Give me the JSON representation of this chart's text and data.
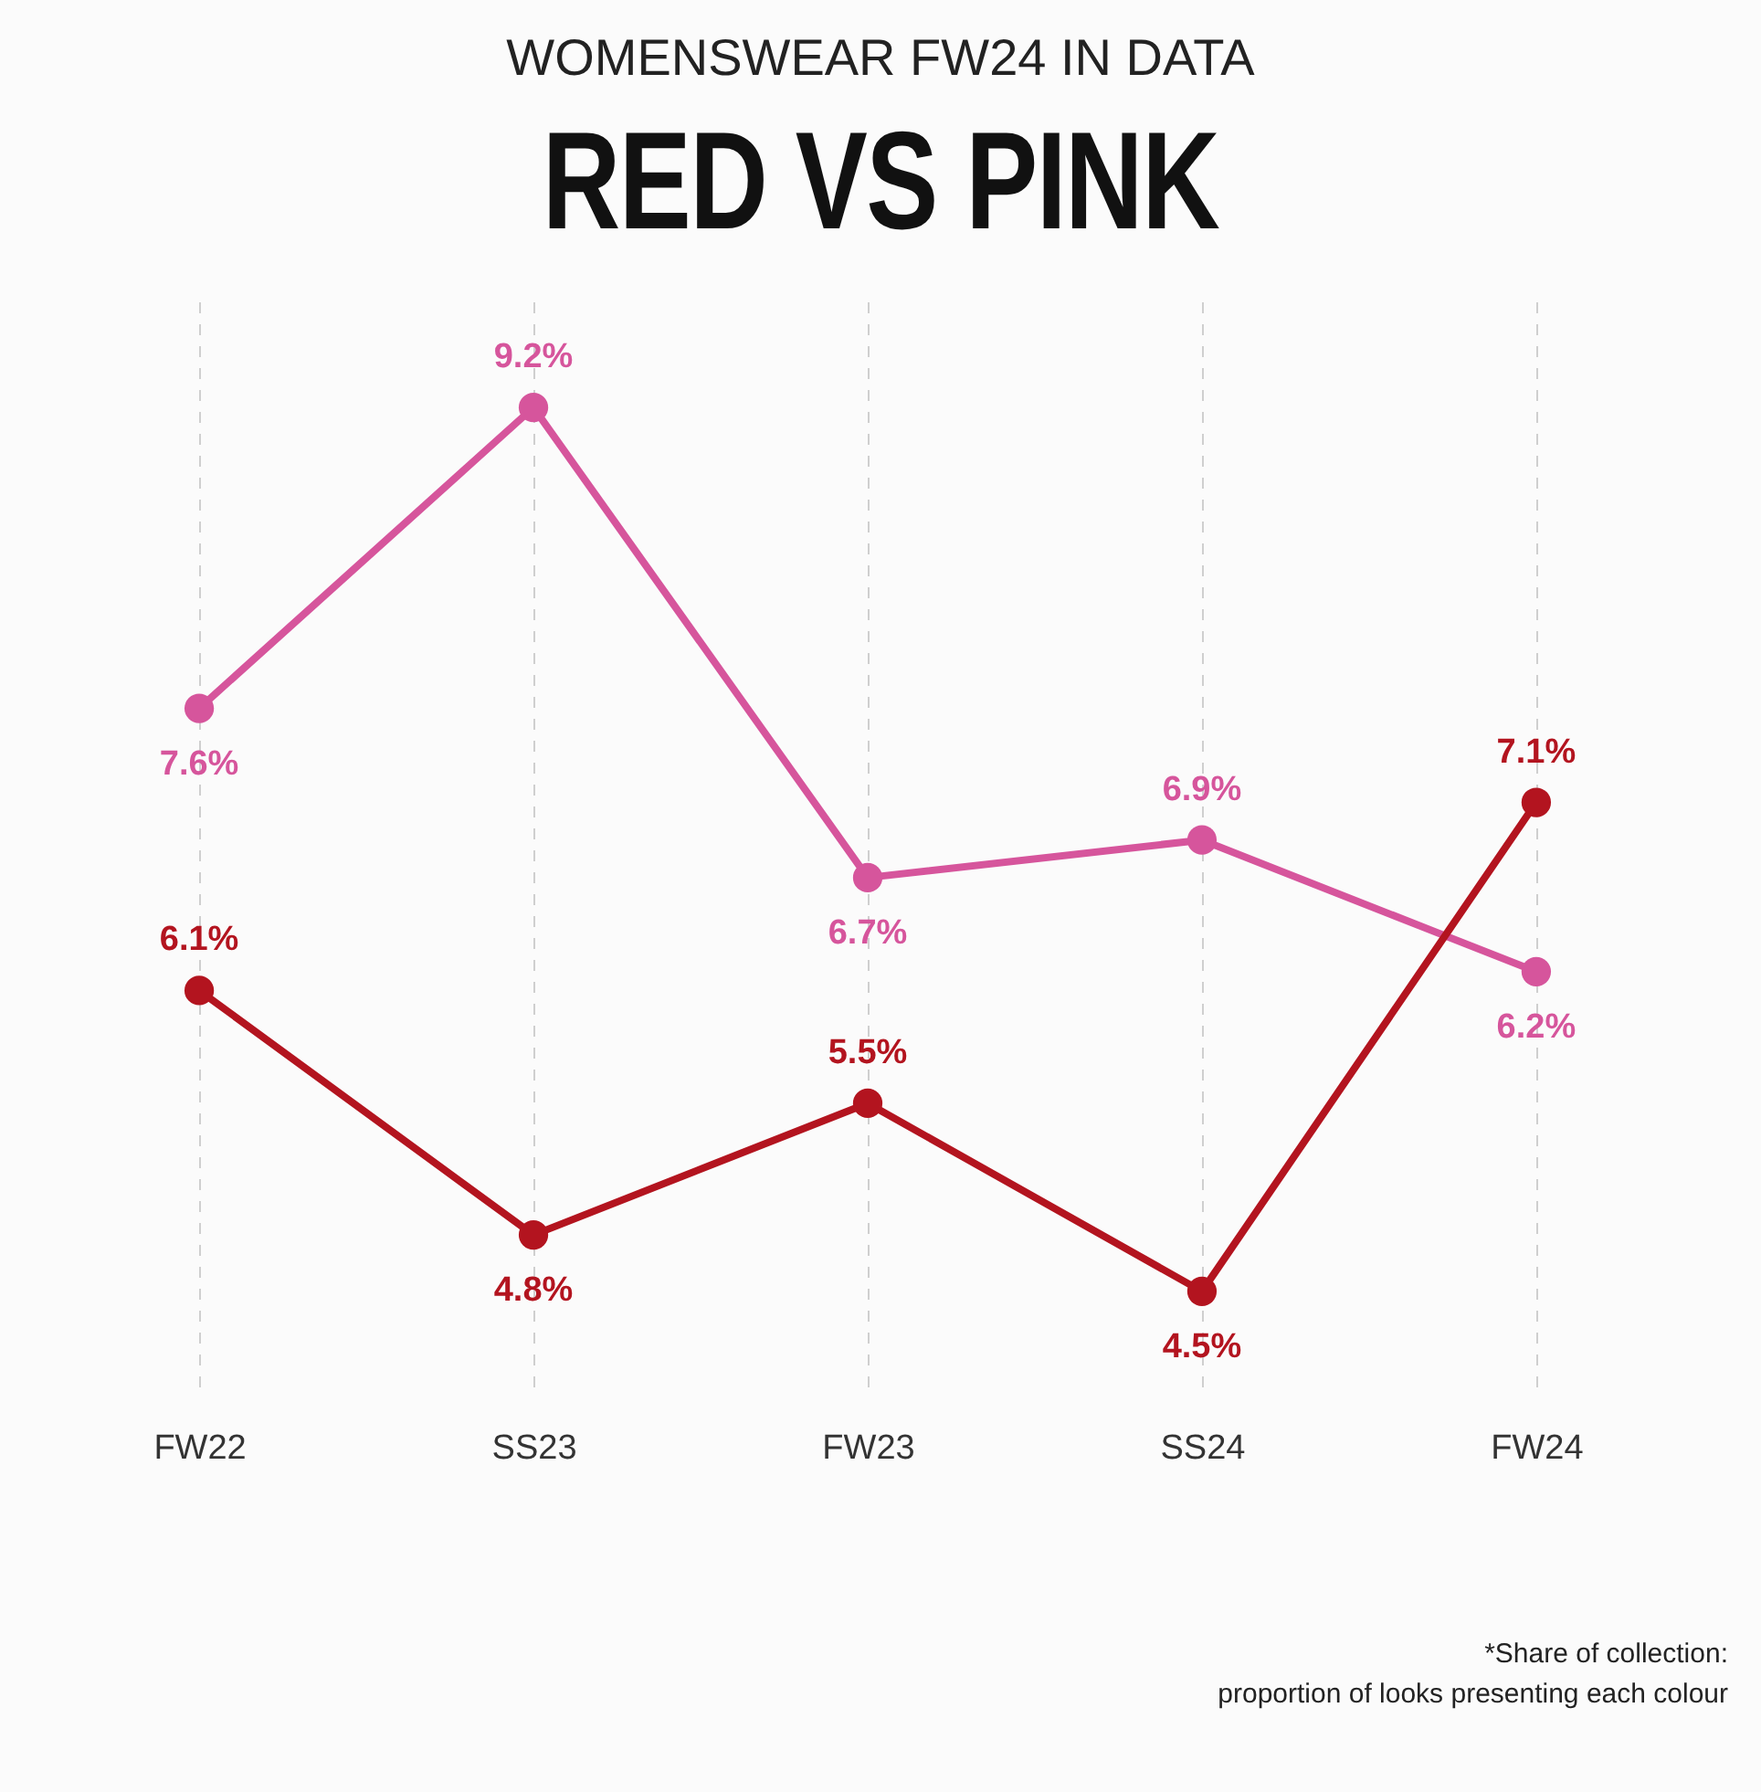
{
  "chart_data": {
    "type": "line",
    "title": "RED VS PINK",
    "subtitle": "WOMENSWEAR FW24 IN DATA",
    "categories": [
      "FW22",
      "SS23",
      "FW23",
      "SS24",
      "FW24"
    ],
    "series": [
      {
        "color": "#d6559c",
        "values": [
          7.6,
          9.2,
          6.7,
          6.9,
          6.2
        ],
        "value_labels": [
          "7.6%",
          "9.2%",
          "6.7%",
          "6.9%",
          "6.2%"
        ]
      },
      {
        "color": "#b3141f",
        "values": [
          6.1,
          4.8,
          5.5,
          4.5,
          7.1
        ],
        "value_labels": [
          "6.1%",
          "4.8%",
          "5.5%",
          "4.5%",
          "7.1%"
        ]
      }
    ],
    "annotations": [
      "*Share of collection:\nproportion of looks presenting each colour"
    ],
    "grid": "x",
    "marker": "circle",
    "line_style": "solid",
    "tick_labels": "x",
    "legend": false
  }
}
